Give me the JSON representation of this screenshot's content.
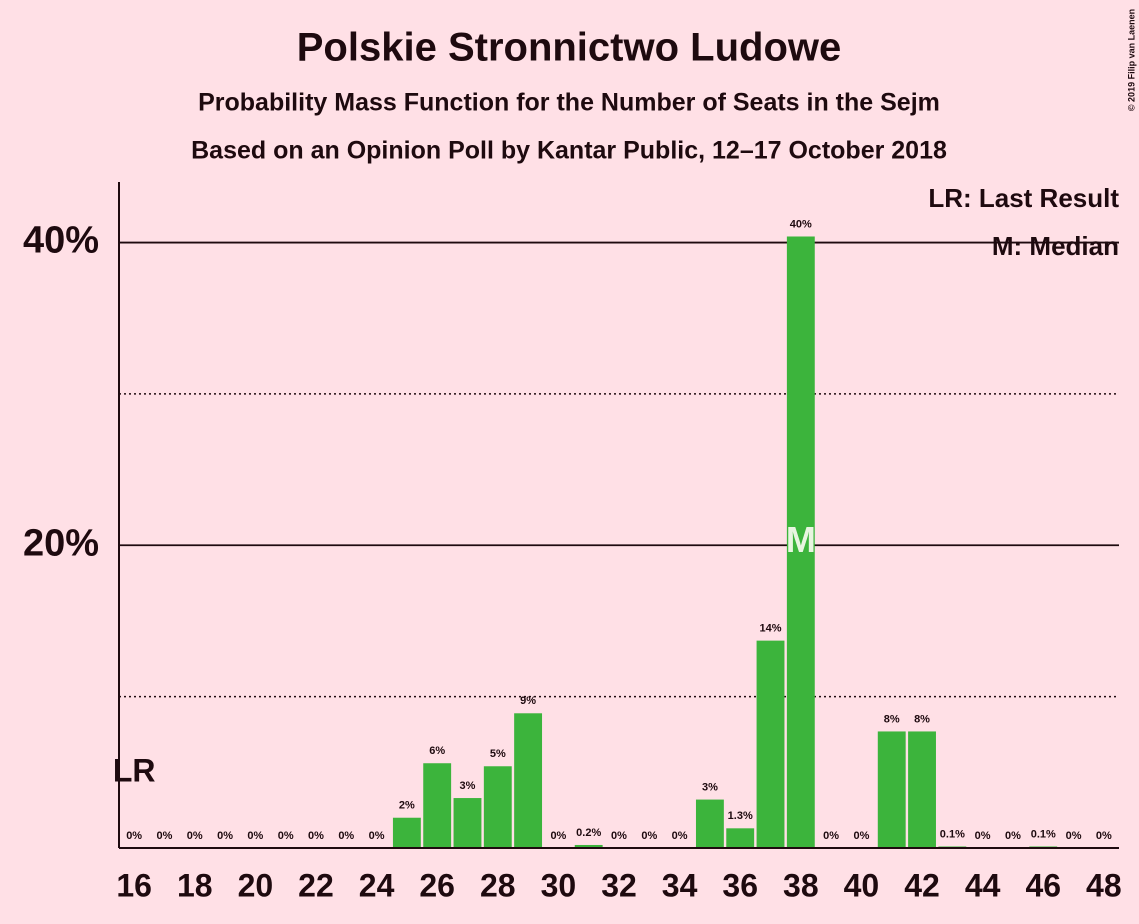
{
  "chart_data": {
    "type": "bar",
    "title": "Polskie Stronnictwo Ludowe",
    "subtitle": "Probability Mass Function for the Number of Seats in the Sejm",
    "subtitle2": "Based on an Opinion Poll by Kantar Public, 12–17 October 2018",
    "copyright": "© 2019 Filip van Laenen",
    "x": [
      16,
      17,
      18,
      19,
      20,
      21,
      22,
      23,
      24,
      25,
      26,
      27,
      28,
      29,
      30,
      31,
      32,
      33,
      34,
      35,
      36,
      37,
      38,
      39,
      40,
      41,
      42,
      43,
      44,
      45,
      46,
      47,
      48
    ],
    "values": [
      0,
      0,
      0,
      0,
      0,
      0,
      0,
      0,
      0,
      2.0,
      5.6,
      3.3,
      5.4,
      8.9,
      0,
      0.2,
      0,
      0,
      0,
      3.2,
      1.3,
      13.7,
      40.4,
      0,
      0,
      7.7,
      7.7,
      0.1,
      0,
      0,
      0.1,
      0,
      0
    ],
    "value_labels": [
      "0%",
      "0%",
      "0%",
      "0%",
      "0%",
      "0%",
      "0%",
      "0%",
      "0%",
      "2%",
      "6%",
      "3%",
      "5%",
      "9%",
      "0%",
      "0.2%",
      "0%",
      "0%",
      "0%",
      "3%",
      "1.3%",
      "14%",
      "40%",
      "0%",
      "0%",
      "8%",
      "8%",
      "0.1%",
      "0%",
      "0%",
      "0.1%",
      "0%",
      "0%"
    ],
    "color": "#3cb43c",
    "xlim": [
      15.5,
      48.5
    ],
    "xticks": [
      16,
      18,
      20,
      22,
      24,
      26,
      28,
      30,
      32,
      34,
      36,
      38,
      40,
      42,
      44,
      46,
      48
    ],
    "ylim": [
      0,
      44
    ],
    "yticks": [
      {
        "value": 20,
        "label": "20%"
      },
      {
        "value": 40,
        "label": "40%"
      }
    ],
    "minor_yticks": [
      10,
      30
    ],
    "grid": true,
    "last_result": {
      "x": 16,
      "label": "LR"
    },
    "median": {
      "x": 38,
      "label": "M"
    },
    "legend": [
      "LR: Last Result",
      "M: Median"
    ],
    "legend_position": "top-right"
  }
}
